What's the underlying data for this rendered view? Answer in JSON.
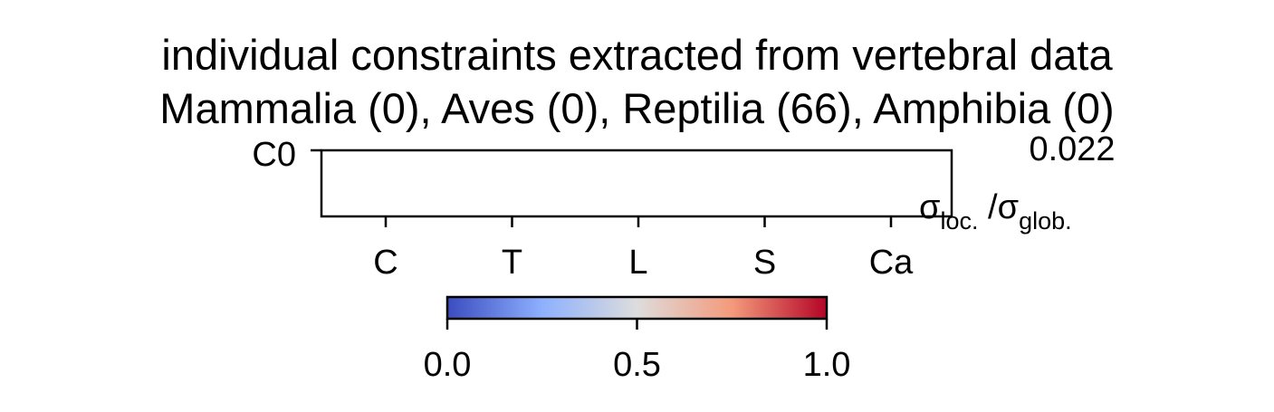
{
  "chart_data": {
    "type": "heatmap",
    "title": "individual constraints extracted from vertebral data",
    "subtitle": "Mammalia (0), Aves (0), Reptilia (66), Amphibia (0)",
    "rows": [
      "C0"
    ],
    "x_tick_labels": [
      "C",
      "T",
      "L",
      "S",
      "Ca"
    ],
    "max_value_label": "0.022",
    "value_label": {
      "base": "σ",
      "sub1": "loc.",
      "separator": " /",
      "sub2": "glob."
    },
    "colorbar": {
      "colormap": "coolwarm",
      "range": [
        0.0,
        1.0
      ],
      "ticks": [
        "0.0",
        "0.5",
        "1.0"
      ],
      "tick_values": [
        0.0,
        0.5,
        1.0
      ],
      "colors": [
        "#3b4cc0",
        "#8db0fe",
        "#dddddd",
        "#f49a7b",
        "#b40426"
      ]
    },
    "cells": []
  }
}
